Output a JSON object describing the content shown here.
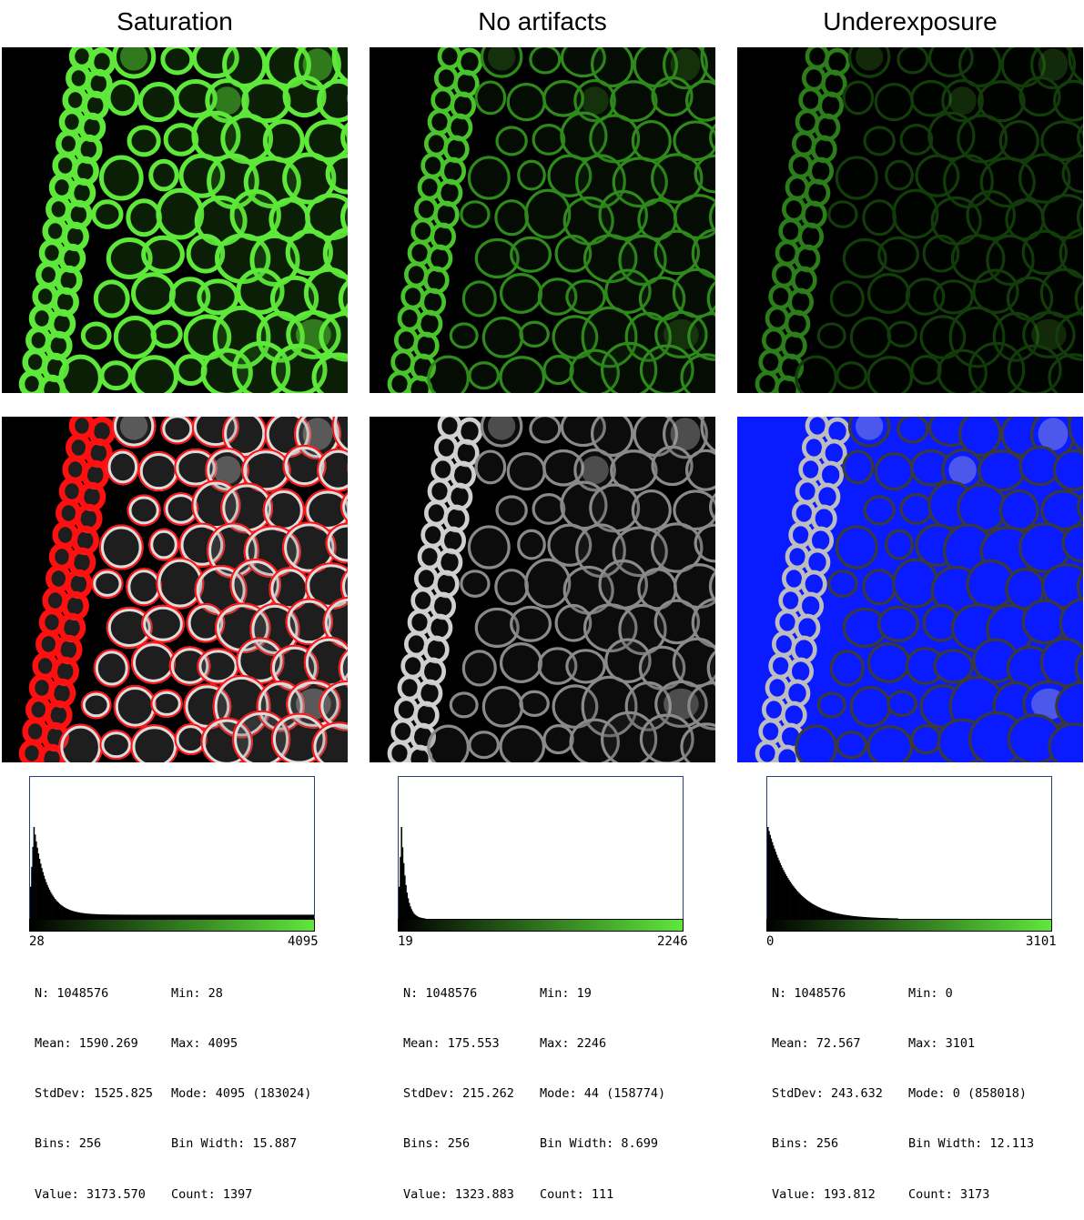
{
  "columns": [
    {
      "title": "Saturation",
      "mode": "saturation",
      "hist": {
        "min_label": "28",
        "max_label": "4095"
      },
      "stats": {
        "left": [
          "N: 1048576",
          "Mean: 1590.269",
          "StdDev: 1525.825",
          "Bins: 256",
          "Value: 3173.570"
        ],
        "right": [
          "Min: 28",
          "Max: 4095",
          "Mode: 4095 (183024)",
          "Bin Width: 15.887",
          "Count: 1397"
        ]
      },
      "hist_shape": {
        "peak_bin": 3,
        "peak_value": 1.0,
        "decay": 0.09,
        "floor": 0.045,
        "spike_end": 0.0
      }
    },
    {
      "title": "No artifacts",
      "mode": "normal",
      "hist": {
        "min_label": "19",
        "max_label": "2246"
      },
      "stats": {
        "left": [
          "N: 1048576",
          "Mean: 175.553",
          "StdDev: 215.262",
          "Bins: 256",
          "Value: 1323.883"
        ],
        "right": [
          "Min: 19",
          "Max: 2246",
          "Mode: 44 (158774)",
          "Bin Width: 8.699",
          "Count: 111"
        ]
      },
      "hist_shape": {
        "peak_bin": 2,
        "peak_value": 1.0,
        "decay": 0.25,
        "floor": 0.0,
        "spike_end": 0.0
      }
    },
    {
      "title": "Underexposure",
      "mode": "underexposure",
      "hist": {
        "min_label": "0",
        "max_label": "3101"
      },
      "stats": {
        "left": [
          "N: 1048576",
          "Mean: 72.567",
          "StdDev: 243.632",
          "Bins: 256",
          "Value: 193.812"
        ],
        "right": [
          "Min: 0",
          "Max: 3101",
          "Mode: 0 (858018)",
          "Bin Width: 12.113",
          "Count: 3173"
        ]
      },
      "hist_shape": {
        "peak_bin": 0,
        "peak_value": 1.0,
        "decay": 0.045,
        "floor": 0.0,
        "spike_end": 0.0
      }
    }
  ],
  "colors": {
    "green": "#5ee83a",
    "saturated_red": "#ff1010",
    "underexposed_blue": "#0a1cff",
    "hist_border": "#2b3f73"
  }
}
